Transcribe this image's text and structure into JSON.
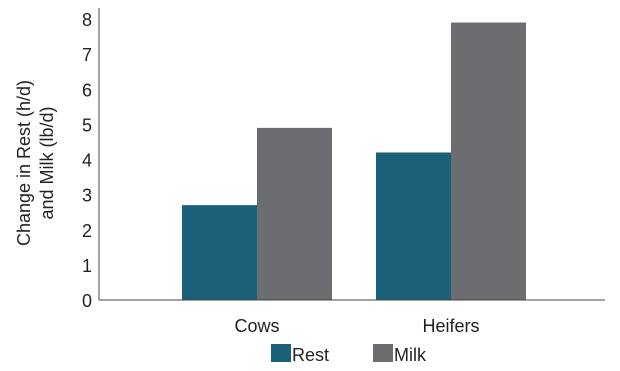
{
  "chart_data": {
    "type": "bar",
    "categories": [
      "Cows",
      "Heifers"
    ],
    "series": [
      {
        "name": "Rest",
        "values": [
          2.7,
          4.2
        ],
        "color": "#1a6079"
      },
      {
        "name": "Milk",
        "values": [
          4.9,
          7.9
        ],
        "color": "#6c6d70"
      }
    ],
    "ylabel_lines": [
      "Change in Rest (h/d)",
      "and Milk (lb/d)"
    ],
    "ylim": [
      0,
      8
    ],
    "yticks": [
      0,
      1,
      2,
      3,
      4,
      5,
      6,
      7,
      8
    ],
    "grid": false,
    "legend_position": "bottom-center"
  }
}
